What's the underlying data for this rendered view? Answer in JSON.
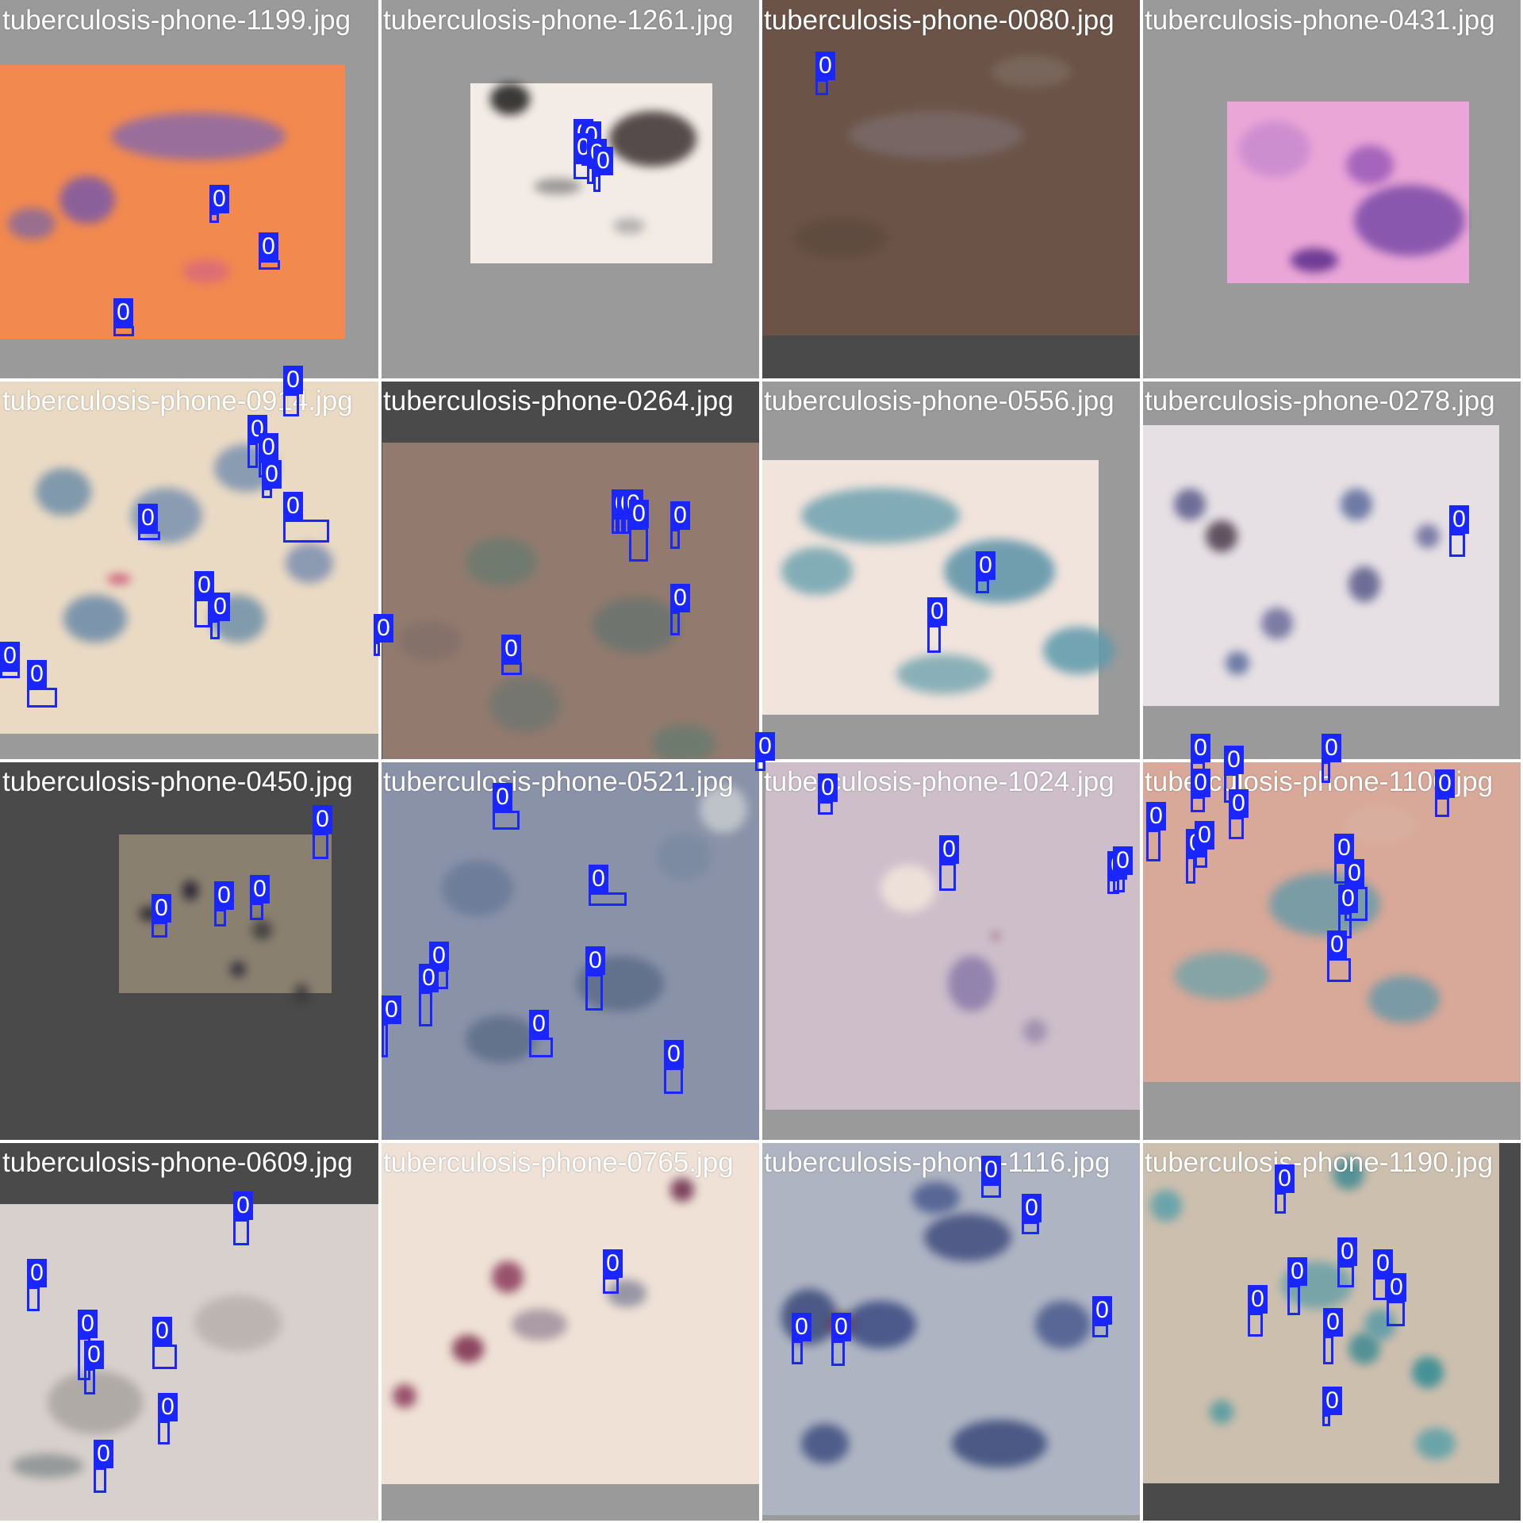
{
  "colors": {
    "box": "#1a26ff",
    "label_text": "#ffffff",
    "pad_gray": "#9a9a9a",
    "pad_dark": "#4a4a4a"
  },
  "tiles": [
    {
      "name": "tuberculosis-phone-1199.jpg",
      "boxes": [
        {
          "label": "0"
        },
        {
          "label": "0"
        },
        {
          "label": "0"
        }
      ]
    },
    {
      "name": "tuberculosis-phone-1261.jpg",
      "boxes": [
        {
          "label": "0"
        },
        {
          "label": "0"
        },
        {
          "label": "0"
        },
        {
          "label": "0"
        },
        {
          "label": "0"
        }
      ]
    },
    {
      "name": "tuberculosis-phone-0080.jpg",
      "boxes": [
        {
          "label": "0"
        }
      ]
    },
    {
      "name": "tuberculosis-phone-0431.jpg",
      "boxes": []
    },
    {
      "name": "tuberculosis-phone-0914.jpg",
      "boxes": [
        {
          "label": "0"
        },
        {
          "label": "0"
        },
        {
          "label": "0"
        },
        {
          "label": "0"
        },
        {
          "label": "0"
        },
        {
          "label": "0"
        },
        {
          "label": "0"
        },
        {
          "label": "0"
        },
        {
          "label": "0"
        },
        {
          "label": "0"
        },
        {
          "label": "0"
        }
      ]
    },
    {
      "name": "tuberculosis-phone-0264.jpg",
      "boxes": [
        {
          "label": "0"
        },
        {
          "label": "0"
        },
        {
          "label": "0"
        },
        {
          "label": "0"
        },
        {
          "label": "0"
        },
        {
          "label": "0"
        },
        {
          "label": "0"
        },
        {
          "label": "0"
        }
      ]
    },
    {
      "name": "tuberculosis-phone-0556.jpg",
      "boxes": [
        {
          "label": "0"
        },
        {
          "label": "0"
        }
      ]
    },
    {
      "name": "tuberculosis-phone-0278.jpg",
      "boxes": [
        {
          "label": "0"
        },
        {
          "label": "0"
        },
        {
          "label": "0"
        },
        {
          "label": "0"
        }
      ]
    },
    {
      "name": "tuberculosis-phone-0450.jpg",
      "boxes": [
        {
          "label": "0"
        },
        {
          "label": "0"
        },
        {
          "label": "0"
        },
        {
          "label": "0"
        }
      ]
    },
    {
      "name": "tuberculosis-phone-0521.jpg",
      "boxes": [
        {
          "label": "0"
        },
        {
          "label": "0"
        },
        {
          "label": "0"
        },
        {
          "label": "0"
        },
        {
          "label": "0"
        },
        {
          "label": "0"
        },
        {
          "label": "0"
        },
        {
          "label": "0"
        }
      ]
    },
    {
      "name": "tuberculosis-phone-1024.jpg",
      "boxes": [
        {
          "label": "0"
        },
        {
          "label": "0"
        },
        {
          "label": "0"
        },
        {
          "label": "0"
        }
      ]
    },
    {
      "name": "tuberculosis-phone-1100.jpg",
      "boxes": [
        {
          "label": "0"
        },
        {
          "label": "0"
        },
        {
          "label": "0"
        },
        {
          "label": "0"
        },
        {
          "label": "0"
        },
        {
          "label": "0"
        },
        {
          "label": "0"
        },
        {
          "label": "0"
        },
        {
          "label": "0"
        },
        {
          "label": "0"
        }
      ]
    },
    {
      "name": "tuberculosis-phone-0609.jpg",
      "boxes": [
        {
          "label": "0"
        },
        {
          "label": "0"
        },
        {
          "label": "0"
        },
        {
          "label": "0"
        },
        {
          "label": "0"
        },
        {
          "label": "0"
        },
        {
          "label": "0"
        }
      ]
    },
    {
      "name": "tuberculosis-phone-0765.jpg",
      "boxes": [
        {
          "label": "0"
        }
      ]
    },
    {
      "name": "tuberculosis-phone-1116.jpg",
      "boxes": [
        {
          "label": "0"
        },
        {
          "label": "0"
        },
        {
          "label": "0"
        },
        {
          "label": "0"
        },
        {
          "label": "0"
        }
      ]
    },
    {
      "name": "tuberculosis-phone-1190.jpg",
      "boxes": [
        {
          "label": "0"
        },
        {
          "label": "0"
        },
        {
          "label": "0"
        },
        {
          "label": "0"
        },
        {
          "label": "0"
        },
        {
          "label": "0"
        },
        {
          "label": "0"
        },
        {
          "label": "0"
        }
      ]
    }
  ]
}
